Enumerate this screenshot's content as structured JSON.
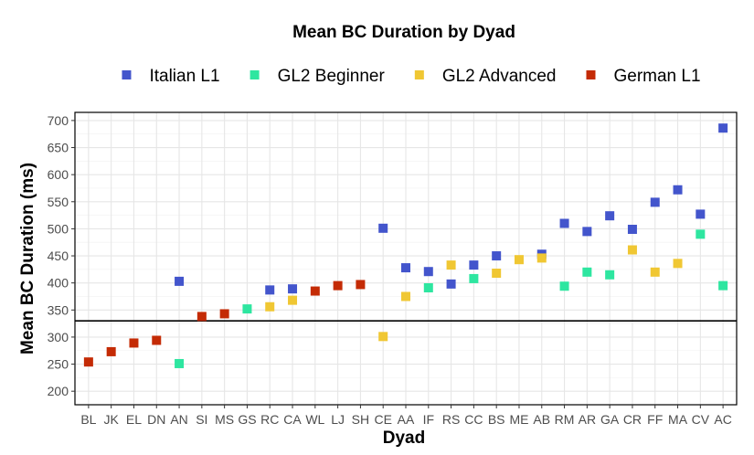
{
  "chart_data": {
    "type": "scatter",
    "title": "Mean BC Duration by Dyad",
    "xlabel": "Dyad",
    "ylabel": "Mean BC Duration (ms)",
    "ylim": [
      175,
      715
    ],
    "yticks": [
      200,
      250,
      300,
      350,
      400,
      450,
      500,
      550,
      600,
      650,
      700
    ],
    "categories": [
      "BL",
      "JK",
      "EL",
      "DN",
      "AN",
      "SI",
      "MS",
      "GS",
      "RC",
      "CA",
      "WL",
      "LJ",
      "SH",
      "CE",
      "AA",
      "IF",
      "RS",
      "CC",
      "BS",
      "ME",
      "AB",
      "RM",
      "AR",
      "GA",
      "CR",
      "FF",
      "MA",
      "CV",
      "AC"
    ],
    "reference_line": 330,
    "grid": true,
    "legend_position": "top",
    "series": [
      {
        "name": "Italian L1",
        "color": "#4355CC",
        "points": [
          {
            "x": "AN",
            "y": 403
          },
          {
            "x": "RC",
            "y": 387
          },
          {
            "x": "CA",
            "y": 389
          },
          {
            "x": "CE",
            "y": 501
          },
          {
            "x": "AA",
            "y": 428
          },
          {
            "x": "IF",
            "y": 421
          },
          {
            "x": "RS",
            "y": 398
          },
          {
            "x": "CC",
            "y": 433
          },
          {
            "x": "BS",
            "y": 450
          },
          {
            "x": "AB",
            "y": 453
          },
          {
            "x": "RM",
            "y": 510
          },
          {
            "x": "AR",
            "y": 495
          },
          {
            "x": "GA",
            "y": 524
          },
          {
            "x": "CR",
            "y": 499
          },
          {
            "x": "FF",
            "y": 549
          },
          {
            "x": "MA",
            "y": 572
          },
          {
            "x": "CV",
            "y": 527
          },
          {
            "x": "AC",
            "y": 686
          }
        ]
      },
      {
        "name": "GL2 Beginner",
        "color": "#2EE6A0",
        "points": [
          {
            "x": "AN",
            "y": 251
          },
          {
            "x": "GS",
            "y": 352
          },
          {
            "x": "IF",
            "y": 391
          },
          {
            "x": "CC",
            "y": 408
          },
          {
            "x": "RM",
            "y": 394
          },
          {
            "x": "AR",
            "y": 420
          },
          {
            "x": "GA",
            "y": 415
          },
          {
            "x": "CV",
            "y": 490
          },
          {
            "x": "AC",
            "y": 395
          }
        ]
      },
      {
        "name": "GL2 Advanced",
        "color": "#F0C733",
        "points": [
          {
            "x": "RC",
            "y": 356
          },
          {
            "x": "CA",
            "y": 368
          },
          {
            "x": "CE",
            "y": 301
          },
          {
            "x": "AA",
            "y": 375
          },
          {
            "x": "RS",
            "y": 433
          },
          {
            "x": "BS",
            "y": 418
          },
          {
            "x": "ME",
            "y": 443
          },
          {
            "x": "AB",
            "y": 446
          },
          {
            "x": "CR",
            "y": 461
          },
          {
            "x": "FF",
            "y": 420
          },
          {
            "x": "MA",
            "y": 436
          }
        ]
      },
      {
        "name": "German L1",
        "color": "#C42B05",
        "points": [
          {
            "x": "BL",
            "y": 254
          },
          {
            "x": "JK",
            "y": 273
          },
          {
            "x": "EL",
            "y": 289
          },
          {
            "x": "DN",
            "y": 294
          },
          {
            "x": "SI",
            "y": 338
          },
          {
            "x": "MS",
            "y": 343
          },
          {
            "x": "WL",
            "y": 385
          },
          {
            "x": "LJ",
            "y": 395
          },
          {
            "x": "SH",
            "y": 397
          }
        ]
      }
    ]
  }
}
